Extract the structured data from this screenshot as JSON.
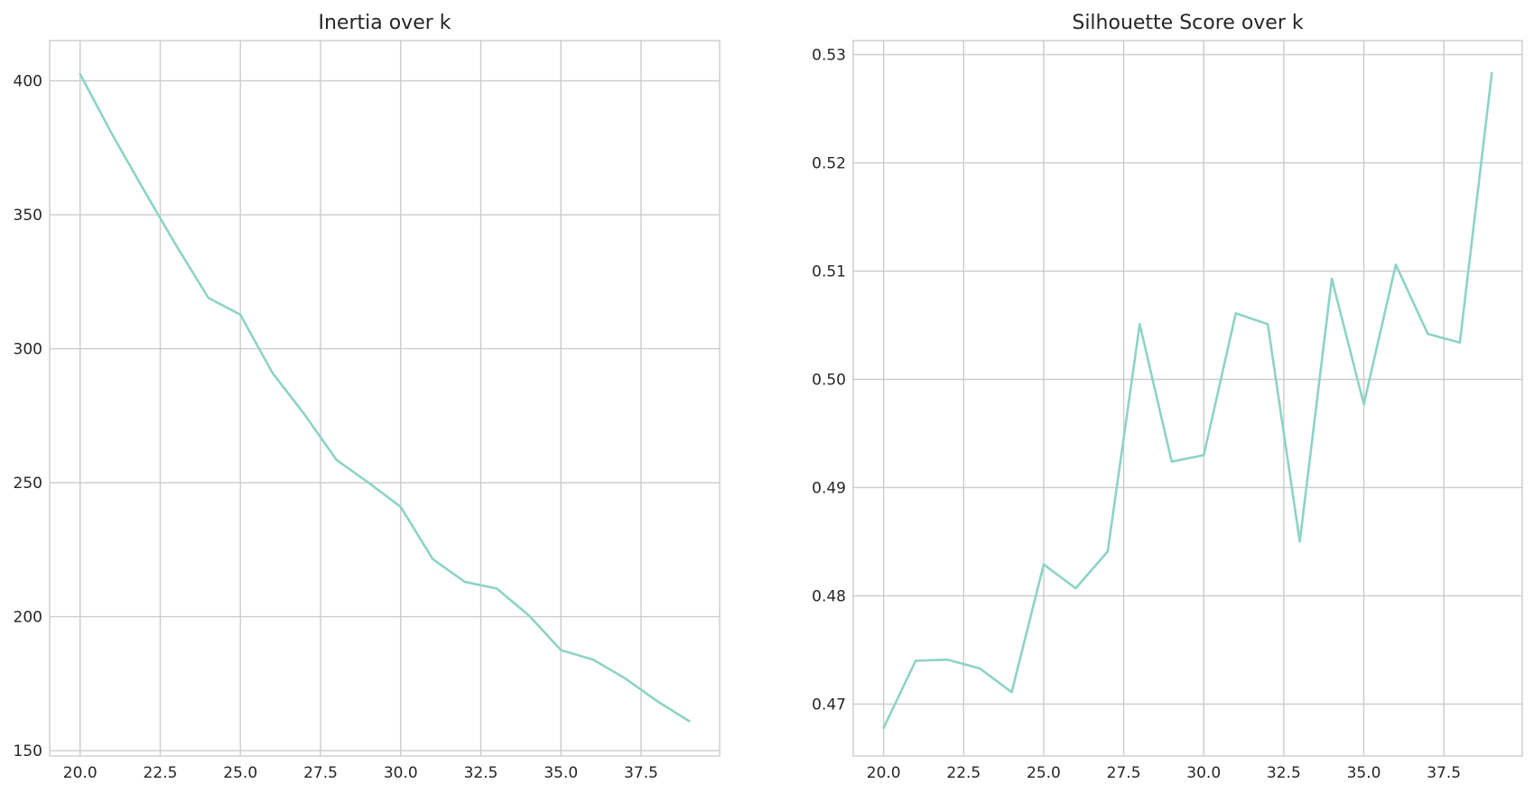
{
  "chart_data": [
    {
      "type": "line",
      "title": "Inertia over k",
      "xlabel": "",
      "ylabel": "",
      "grid": true,
      "xlim": [
        19.05,
        39.95
      ],
      "ylim": [
        148,
        415
      ],
      "xticks": [
        20.0,
        22.5,
        25.0,
        27.5,
        30.0,
        32.5,
        35.0,
        37.5
      ],
      "yticks": [
        150,
        200,
        250,
        300,
        350,
        400
      ],
      "series": [
        {
          "color": "#8dd3c7",
          "x": [
            20,
            21,
            22,
            23,
            24,
            25,
            26,
            27,
            28,
            29,
            30,
            31,
            32,
            33,
            34,
            35,
            36,
            37,
            38,
            39
          ],
          "y": [
            402.5,
            380,
            359,
            338.5,
            319,
            312.7,
            291,
            275.5,
            258.5,
            250,
            241,
            221.5,
            213,
            210.5,
            200.5,
            187.5,
            184,
            177,
            168.5,
            161
          ]
        }
      ]
    },
    {
      "type": "line",
      "title": "Silhouette Score over k",
      "xlabel": "",
      "ylabel": "",
      "grid": true,
      "xlim": [
        19.05,
        39.95
      ],
      "ylim": [
        0.4652,
        0.5313
      ],
      "xticks": [
        20.0,
        22.5,
        25.0,
        27.5,
        30.0,
        32.5,
        35.0,
        37.5
      ],
      "yticks": [
        0.47,
        0.48,
        0.49,
        0.5,
        0.51,
        0.52,
        0.53
      ],
      "ytick_labels": [
        "0.47",
        "0.48",
        "0.49",
        "0.50",
        "0.51",
        "0.52",
        "0.53"
      ],
      "series": [
        {
          "color": "#8dd3c7",
          "x": [
            20,
            21,
            22,
            23,
            24,
            25,
            26,
            27,
            28,
            29,
            30,
            31,
            32,
            33,
            34,
            35,
            36,
            37,
            38,
            39
          ],
          "y": [
            0.4678,
            0.474,
            0.4741,
            0.4733,
            0.4711,
            0.4829,
            0.4807,
            0.4841,
            0.5051,
            0.4924,
            0.493,
            0.5061,
            0.5051,
            0.485,
            0.5093,
            0.4977,
            0.5106,
            0.5042,
            0.5034,
            0.5283
          ]
        }
      ]
    }
  ]
}
